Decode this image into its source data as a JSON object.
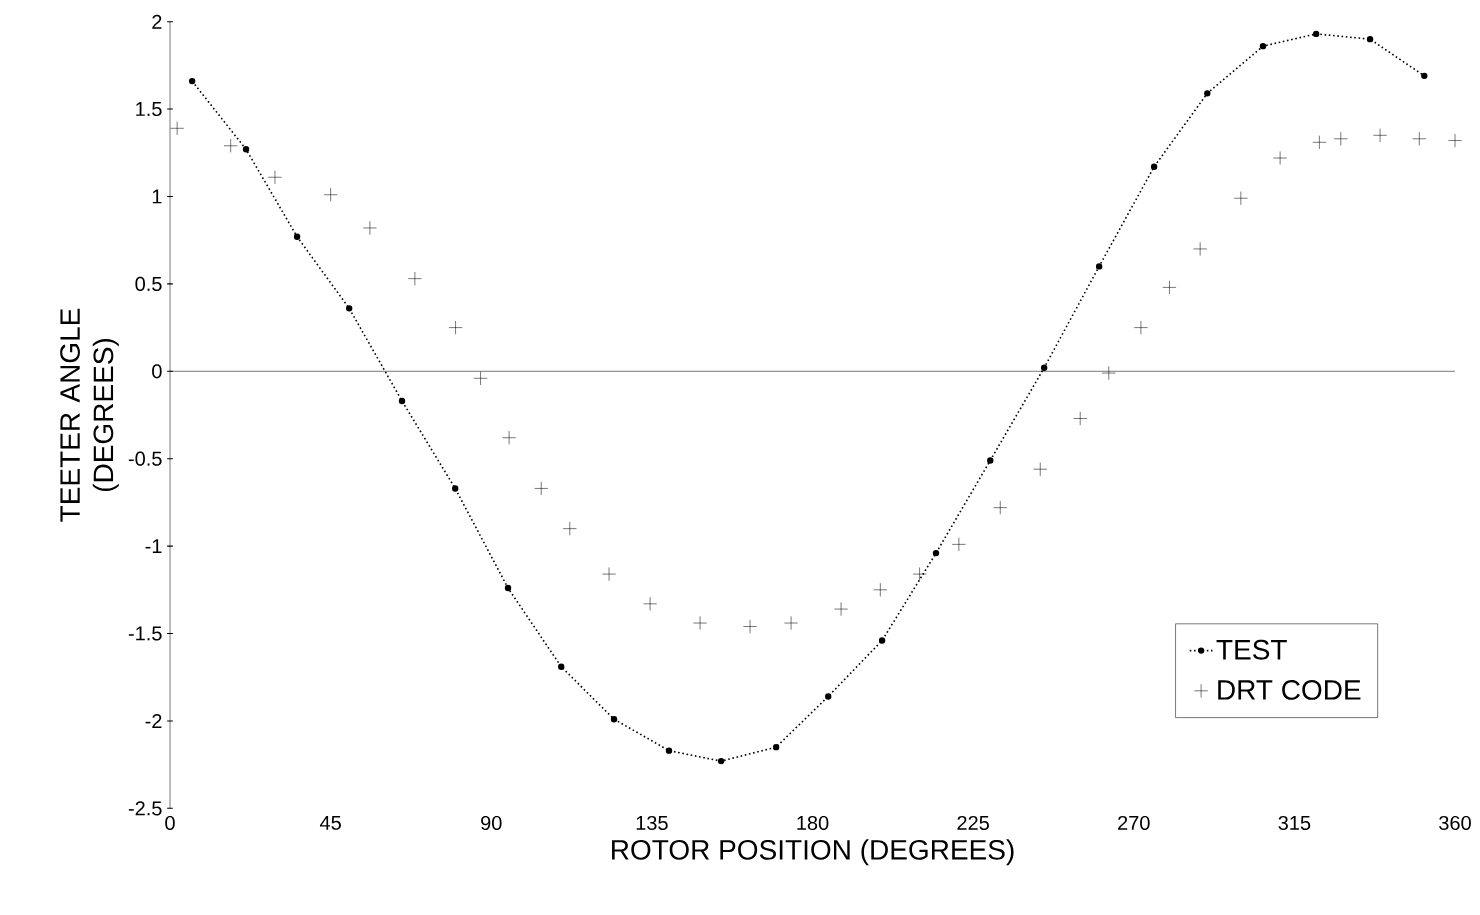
{
  "chart_data": {
    "type": "line",
    "xlabel": "ROTOR POSITION (DEGREES)",
    "ylabel": "TEETER ANGLE (DEGREES)",
    "xlim": [
      0,
      360
    ],
    "xticks": [
      0,
      45,
      90,
      135,
      180,
      225,
      270,
      315,
      360
    ],
    "ylim": [
      -2.5,
      2
    ],
    "yticks": [
      -2.5,
      -2,
      -1.5,
      -1,
      -0.5,
      0,
      0.5,
      1,
      1.5,
      2
    ],
    "legend": "bottom right",
    "grid": false,
    "ref_lines": [
      {
        "axis": "y",
        "value": 0
      }
    ],
    "series": [
      {
        "name": "TEST",
        "color": "#000000",
        "marker": "circle",
        "line_style": "dotted",
        "x": [
          6.2,
          21.3,
          35.6,
          50.2,
          65.0,
          79.9,
          94.7,
          109.6,
          124.4,
          139.8,
          154.4,
          169.8,
          184.4,
          199.5,
          214.6,
          229.8,
          244.9,
          260.3,
          275.7,
          290.6,
          306.2,
          321.1,
          336.2,
          351.4
        ],
        "values": [
          1.66,
          1.27,
          0.77,
          0.36,
          -0.17,
          -0.67,
          -1.24,
          -1.69,
          -1.99,
          -2.17,
          -2.23,
          -2.15,
          -1.86,
          -1.54,
          -1.04,
          -0.51,
          0.02,
          0.6,
          1.17,
          1.59,
          1.86,
          1.93,
          1.9,
          1.69
        ]
      },
      {
        "name": "DRT CODE",
        "type": "scatter",
        "color": "#000000",
        "marker": "cross",
        "x": [
          2,
          17,
          29.4,
          45,
          56,
          68.6,
          80,
          87,
          95,
          104,
          112,
          123,
          134.5,
          148.5,
          162.5,
          174,
          188,
          199,
          210,
          221,
          232.6,
          243.8,
          255,
          263,
          272,
          280,
          288.6,
          300,
          311,
          322,
          328,
          339,
          350,
          360
        ],
        "values": [
          1.39,
          1.29,
          1.11,
          1.01,
          0.82,
          0.53,
          0.25,
          -0.04,
          -0.38,
          -0.67,
          -0.9,
          -1.16,
          -1.33,
          -1.44,
          -1.46,
          -1.44,
          -1.36,
          -1.25,
          -1.16,
          -0.99,
          -0.78,
          -0.56,
          -0.27,
          -0.01,
          0.25,
          0.48,
          0.7,
          0.99,
          1.22,
          1.31,
          1.33,
          1.35,
          1.33,
          1.32
        ]
      }
    ]
  }
}
